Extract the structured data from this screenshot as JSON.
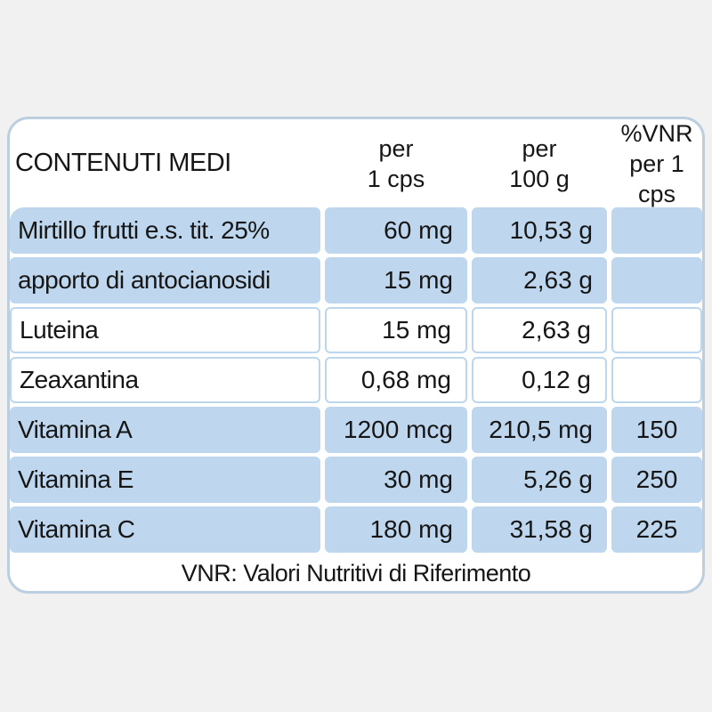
{
  "table": {
    "title": "CONTENUTI MEDI",
    "columns": [
      {
        "line1": "per",
        "line2": "1 cps"
      },
      {
        "line1": "per",
        "line2": "100 g"
      },
      {
        "line1": "%VNR",
        "line2": "per 1 cps"
      }
    ],
    "rows": [
      {
        "name": "Mirtillo frutti e.s. tit. 25%",
        "per_1cps": "60 mg",
        "per_100g": "10,53 g",
        "vnr_per_1cps": "",
        "highlighted": true
      },
      {
        "name": "apporto di antocianosidi",
        "per_1cps": "15 mg",
        "per_100g": "2,63 g",
        "vnr_per_1cps": "",
        "highlighted": true
      },
      {
        "name": "Luteina",
        "per_1cps": "15 mg",
        "per_100g": "2,63 g",
        "vnr_per_1cps": "",
        "highlighted": false
      },
      {
        "name": "Zeaxantina",
        "per_1cps": "0,68 mg",
        "per_100g": "0,12 g",
        "vnr_per_1cps": "",
        "highlighted": false
      },
      {
        "name": "Vitamina A",
        "per_1cps": "1200 mcg",
        "per_100g": "210,5 mg",
        "vnr_per_1cps": "150",
        "highlighted": true
      },
      {
        "name": "Vitamina E",
        "per_1cps": "30 mg",
        "per_100g": "5,26 g",
        "vnr_per_1cps": "250",
        "highlighted": true
      },
      {
        "name": "Vitamina C",
        "per_1cps": "180 mg",
        "per_100g": "31,58 g",
        "vnr_per_1cps": "225",
        "highlighted": true
      }
    ],
    "footnote": "VNR: Valori Nutritivi di Riferimento",
    "colors": {
      "row_highlight": "#bed7ee",
      "card_border": "#bccfe0",
      "page_background": "#f1f1f1",
      "text": "#161616"
    }
  }
}
